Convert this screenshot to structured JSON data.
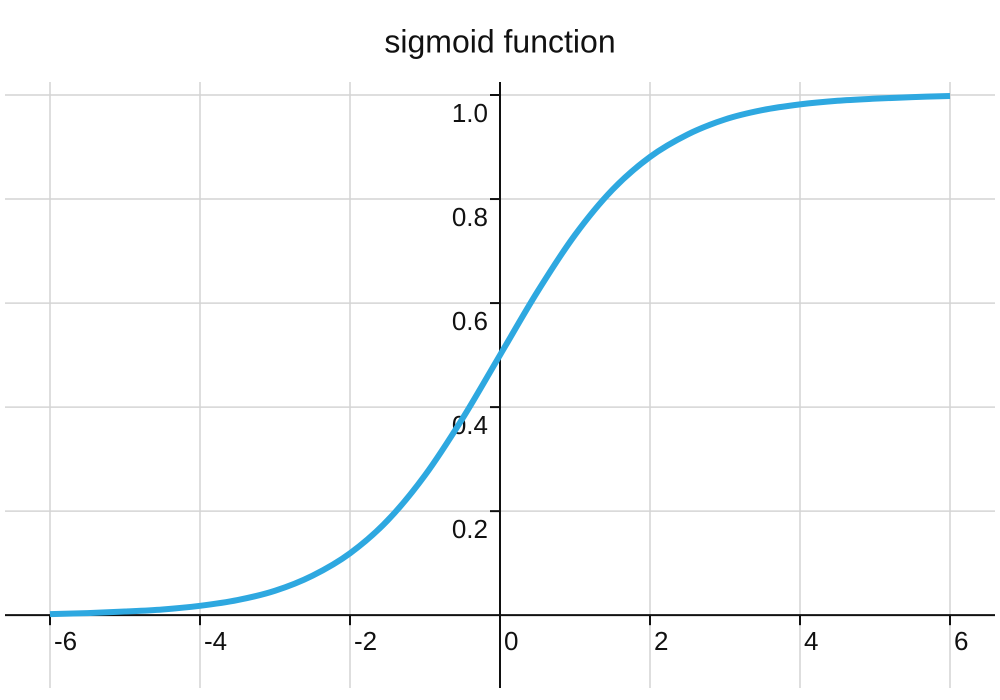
{
  "chart_data": {
    "type": "line",
    "title": "sigmoid function",
    "x": [
      -6,
      -5.5,
      -5,
      -4.5,
      -4,
      -3.5,
      -3,
      -2.5,
      -2,
      -1.5,
      -1,
      -0.5,
      0,
      0.5,
      1,
      1.5,
      2,
      2.5,
      3,
      3.5,
      4,
      4.5,
      5,
      5.5,
      6
    ],
    "values": [
      0.002,
      0.004,
      0.007,
      0.011,
      0.018,
      0.029,
      0.047,
      0.076,
      0.119,
      0.182,
      0.269,
      0.378,
      0.5,
      0.622,
      0.731,
      0.818,
      0.881,
      0.924,
      0.953,
      0.971,
      0.982,
      0.989,
      0.993,
      0.996,
      0.998
    ],
    "color": "#2ea8e0",
    "xlim": [
      -6.6,
      6.6
    ],
    "ylim": [
      -0.14,
      1.025
    ],
    "xticks": [
      -6,
      -4,
      -2,
      0,
      2,
      4,
      6
    ],
    "yticks": [
      0.2,
      0.4,
      0.6,
      0.8,
      {
        "value": 1,
        "label": "1.0"
      }
    ],
    "grid": true
  }
}
